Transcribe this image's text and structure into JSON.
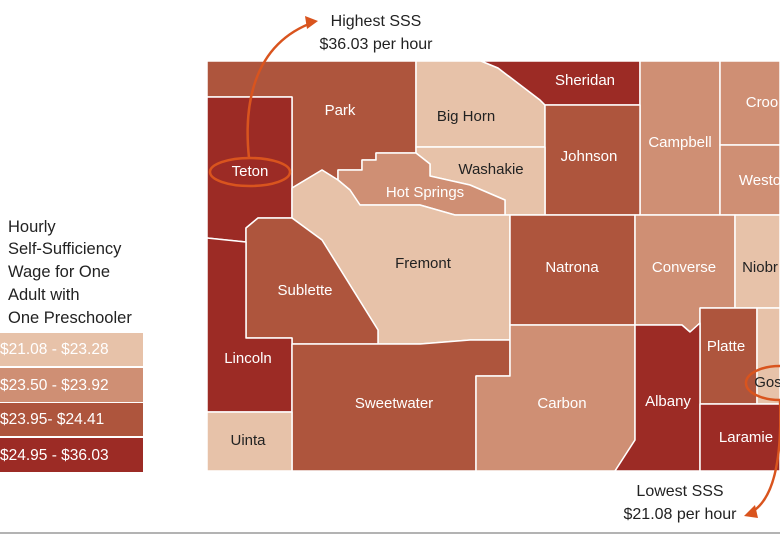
{
  "legend": {
    "title_lines": [
      "Hourly",
      "Self-Sufficiency",
      "Wage for One",
      "Adult with",
      "One Preschooler"
    ],
    "bins": [
      {
        "label": "$21.08 - $23.28",
        "color": "#e7c2a9",
        "text_color": "#222222"
      },
      {
        "label": "$23.50 - $23.92",
        "color": "#cf8f74",
        "text_color": "#ffffff"
      },
      {
        "label": "$23.95- $24.41",
        "color": "#ae553d",
        "text_color": "#ffffff"
      },
      {
        "label": "$24.95 - $36.03",
        "color": "#9c2b25",
        "text_color": "#ffffff"
      }
    ]
  },
  "annotations": {
    "highest": {
      "line1": "Highest SSS",
      "line2": "$36.03 per hour"
    },
    "lowest": {
      "line1": "Lowest SSS",
      "line2": "$21.08 per hour"
    }
  },
  "counties": {
    "park": {
      "name": "Park",
      "bin": 2
    },
    "big_horn": {
      "name": "Big Horn",
      "bin": 0
    },
    "sheridan": {
      "name": "Sheridan",
      "bin": 3
    },
    "campbell": {
      "name": "Campbell",
      "bin": 1
    },
    "crook": {
      "name": "Croo",
      "bin": 1
    },
    "weston": {
      "name": "Westo",
      "bin": 1
    },
    "teton": {
      "name": "Teton",
      "bin": 3
    },
    "washakie": {
      "name": "Washakie",
      "bin": 0
    },
    "johnson": {
      "name": "Johnson",
      "bin": 2
    },
    "hot_springs": {
      "name": "Hot Springs",
      "bin": 1
    },
    "fremont": {
      "name": "Fremont",
      "bin": 0
    },
    "natrona": {
      "name": "Natrona",
      "bin": 2
    },
    "converse": {
      "name": "Converse",
      "bin": 1
    },
    "niobrara": {
      "name": "Niobr",
      "bin": 0
    },
    "sublette": {
      "name": "Sublette",
      "bin": 2
    },
    "lincoln": {
      "name": "Lincoln",
      "bin": 3
    },
    "platte": {
      "name": "Platte",
      "bin": 2
    },
    "goshen": {
      "name": "Gos",
      "bin": 0
    },
    "sweetwater": {
      "name": "Sweetwater",
      "bin": 2
    },
    "carbon": {
      "name": "Carbon",
      "bin": 1
    },
    "albany": {
      "name": "Albany",
      "bin": 3
    },
    "laramie": {
      "name": "Laramie",
      "bin": 3
    },
    "uinta": {
      "name": "Uinta",
      "bin": 0
    }
  }
}
